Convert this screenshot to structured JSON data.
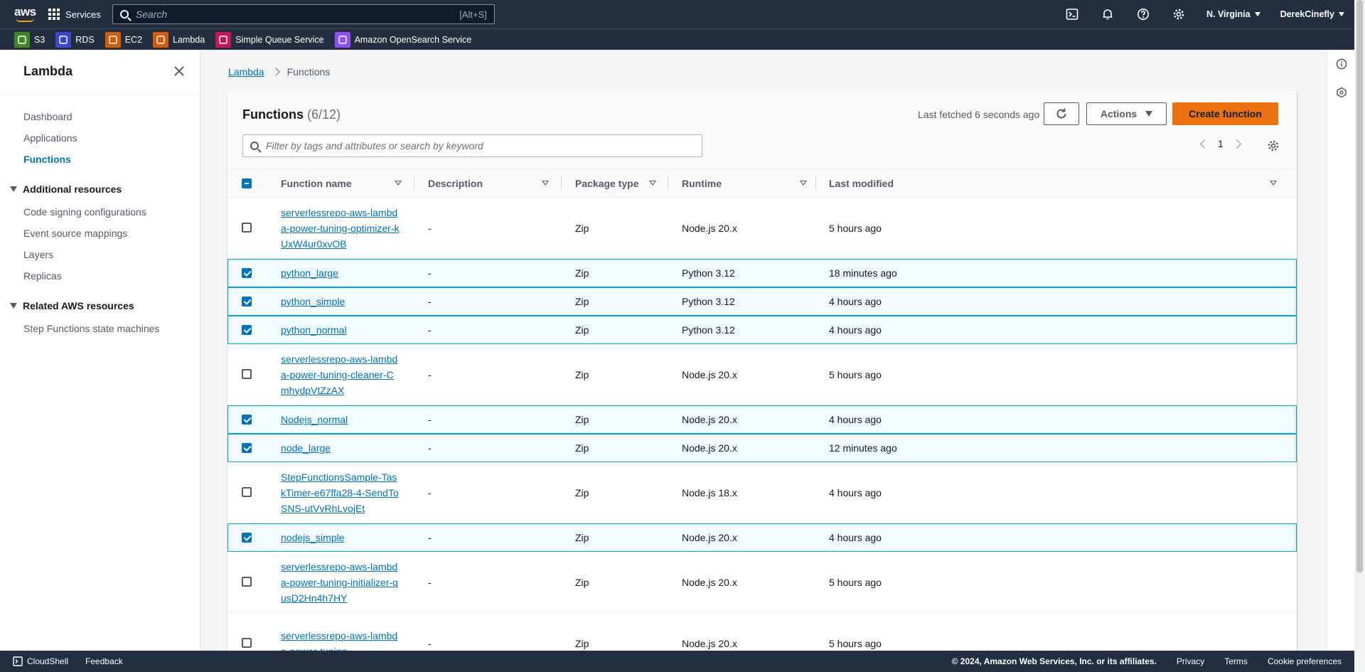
{
  "topnav": {
    "logo": "aws",
    "services_label": "Services",
    "search_placeholder": "Search",
    "search_shortcut": "[Alt+S]",
    "region": "N. Virginia",
    "user": "DerekCinefly"
  },
  "favorites": [
    {
      "label": "S3",
      "color": "#3f8624",
      "icon": "s3-icon"
    },
    {
      "label": "RDS",
      "color": "#3b48cc",
      "icon": "rds-icon"
    },
    {
      "label": "EC2",
      "color": "#d45b07",
      "icon": "ec2-icon"
    },
    {
      "label": "Lambda",
      "color": "#d45b07",
      "icon": "lambda-icon"
    },
    {
      "label": "Simple Queue Service",
      "color": "#c7175b",
      "icon": "sqs-icon"
    },
    {
      "label": "Amazon OpenSearch Service",
      "color": "#8c4fff",
      "icon": "opensearch-icon"
    }
  ],
  "sidenav": {
    "title": "Lambda",
    "items": [
      "Dashboard",
      "Applications",
      "Functions"
    ],
    "active": "Functions",
    "section1": "Additional resources",
    "section1_items": [
      "Code signing configurations",
      "Event source mappings",
      "Layers",
      "Replicas"
    ],
    "section2": "Related AWS resources",
    "section2_items": [
      "Step Functions state machines"
    ]
  },
  "breadcrumb": {
    "root": "Lambda",
    "current": "Functions"
  },
  "panel": {
    "title": "Functions",
    "count": "(6/12)",
    "last_fetched": "Last fetched 6 seconds ago",
    "actions_label": "Actions",
    "create_label": "Create function",
    "filter_placeholder": "Filter by tags and attributes or search by keyword",
    "page": "1"
  },
  "table": {
    "headers": [
      "Function name",
      "Description",
      "Package type",
      "Runtime",
      "Last modified"
    ],
    "rows": [
      {
        "name": "serverlessrepo-aws-lambda-power-tuning-optimizer-kUxW4ur0xvOB",
        "desc": "-",
        "pkg": "Zip",
        "runtime": "Node.js 20.x",
        "modified": "5 hours ago",
        "selected": false
      },
      {
        "name": "python_large",
        "desc": "-",
        "pkg": "Zip",
        "runtime": "Python 3.12",
        "modified": "18 minutes ago",
        "selected": true
      },
      {
        "name": "python_simple",
        "desc": "-",
        "pkg": "Zip",
        "runtime": "Python 3.12",
        "modified": "4 hours ago",
        "selected": true
      },
      {
        "name": "python_normal",
        "desc": "-",
        "pkg": "Zip",
        "runtime": "Python 3.12",
        "modified": "4 hours ago",
        "selected": true
      },
      {
        "name": "serverlessrepo-aws-lambda-power-tuning-cleaner-CmhydpVtZzAX",
        "desc": "-",
        "pkg": "Zip",
        "runtime": "Node.js 20.x",
        "modified": "5 hours ago",
        "selected": false
      },
      {
        "name": "Nodejs_normal",
        "desc": "-",
        "pkg": "Zip",
        "runtime": "Node.js 20.x",
        "modified": "4 hours ago",
        "selected": true
      },
      {
        "name": "node_large",
        "desc": "-",
        "pkg": "Zip",
        "runtime": "Node.js 20.x",
        "modified": "12 minutes ago",
        "selected": true
      },
      {
        "name": "StepFunctionsSample-TaskTimer-e67ffa28-4-SendToSNS-utVvRhLvojEt",
        "desc": "-",
        "pkg": "Zip",
        "runtime": "Node.js 18.x",
        "modified": "4 hours ago",
        "selected": false
      },
      {
        "name": "nodejs_simple",
        "desc": "-",
        "pkg": "Zip",
        "runtime": "Node.js 20.x",
        "modified": "4 hours ago",
        "selected": true
      },
      {
        "name": "serverlessrepo-aws-lambda-power-tuning-initializer-qusD2Hn4h7HY",
        "desc": "-",
        "pkg": "Zip",
        "runtime": "Node.js 20.x",
        "modified": "5 hours ago",
        "selected": false
      },
      {
        "name": "serverlessrepo-aws-lambda-power-tuning-",
        "desc": "-",
        "pkg": "Zip",
        "runtime": "Node.js 20.x",
        "modified": "5 hours ago",
        "selected": false
      }
    ]
  },
  "footer": {
    "cloudshell": "CloudShell",
    "feedback": "Feedback",
    "copyright": "© 2024, Amazon Web Services, Inc. or its affiliates.",
    "privacy": "Privacy",
    "terms": "Terms",
    "cookies": "Cookie preferences"
  }
}
